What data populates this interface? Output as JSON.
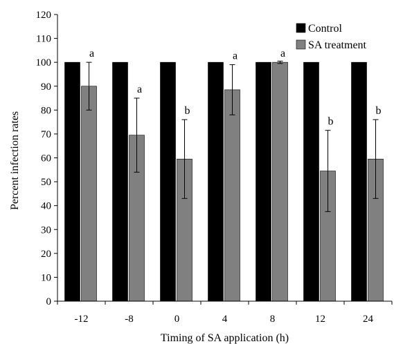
{
  "chart_data": {
    "type": "bar",
    "title": "",
    "xlabel": "Timing of SA application (h)",
    "ylabel": "Percent infection rates",
    "ylim": [
      0,
      120
    ],
    "yticks": [
      0,
      10,
      20,
      30,
      40,
      50,
      60,
      70,
      80,
      90,
      100,
      110,
      120
    ],
    "categories": [
      "-12",
      "-8",
      "0",
      "4",
      "8",
      "12",
      "24"
    ],
    "series": [
      {
        "name": "Control",
        "color": "#000000",
        "values": [
          100,
          100,
          100,
          100,
          100,
          100,
          100
        ]
      },
      {
        "name": "SA treatment",
        "color": "#808080",
        "values": [
          90,
          69.5,
          59.5,
          88.5,
          100,
          54.5,
          59.5
        ],
        "errors": [
          10,
          15.5,
          16.5,
          10.5,
          0.5,
          17,
          16.5
        ],
        "significance": [
          "a",
          "a",
          "b",
          "a",
          "a",
          "b",
          "b"
        ]
      }
    ],
    "grid": false,
    "legend_position": "top-right"
  }
}
